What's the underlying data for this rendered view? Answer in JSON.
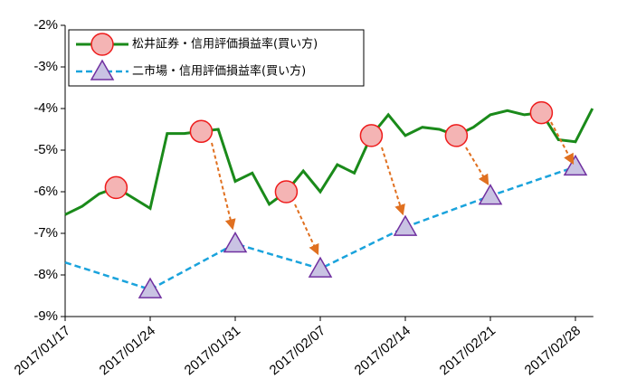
{
  "chart_data": {
    "type": "line",
    "categories": [
      "2017/01/17",
      null,
      null,
      null,
      null,
      "2017/01/24",
      null,
      null,
      null,
      null,
      "2017/01/31",
      null,
      null,
      null,
      null,
      "2017/02/07",
      null,
      null,
      null,
      null,
      "2017/02/14",
      null,
      null,
      null,
      null,
      "2017/02/21",
      null,
      null,
      null,
      null,
      "2017/02/28",
      null
    ],
    "ylim": [
      -9,
      -2
    ],
    "yticks": [
      {
        "value": -9,
        "label": "-9%"
      },
      {
        "value": -8,
        "label": "-8%"
      },
      {
        "value": -7,
        "label": "-7%"
      },
      {
        "value": -6,
        "label": "-6%"
      },
      {
        "value": -5,
        "label": "-5%"
      },
      {
        "value": -4,
        "label": "-4%"
      },
      {
        "value": -3,
        "label": "-3%"
      },
      {
        "value": -2,
        "label": "-2%"
      }
    ],
    "grid": false,
    "legend": "top-left",
    "connect_gaps": true,
    "series": [
      {
        "name": "松井証券・信用評価損益率(買い方)",
        "color": "#1a8a1a",
        "marker": "circle",
        "marker_fill": "#f4b4b4",
        "marker_color": "#ee1c1c",
        "values": [
          -6.55,
          -6.35,
          -6.05,
          -5.9,
          -6.15,
          -6.4,
          -4.6,
          -4.6,
          -4.55,
          -4.5,
          -5.75,
          -5.55,
          -6.3,
          -6.0,
          -5.5,
          -6.0,
          -5.35,
          -5.55,
          -4.65,
          -4.15,
          -4.65,
          -4.45,
          -4.5,
          -4.65,
          -4.45,
          -4.15,
          -4.05,
          -4.15,
          -4.1,
          -4.75,
          -4.8,
          -4.0
        ],
        "marker_values": [
          null,
          null,
          null,
          -5.9,
          null,
          null,
          null,
          null,
          -4.55,
          null,
          null,
          null,
          null,
          -6.0,
          null,
          null,
          null,
          null,
          -4.65,
          null,
          null,
          null,
          null,
          -4.65,
          null,
          null,
          null,
          null,
          -4.1,
          null,
          null,
          null
        ]
      },
      {
        "name": "二市場・信用評価損益率(買い方)",
        "color": "#1aa3dc",
        "dashed": true,
        "marker": "triangle",
        "marker_fill": "#c9c3e3",
        "marker_color": "#7030a0",
        "values": [
          -7.7,
          null,
          null,
          null,
          null,
          -8.35,
          null,
          null,
          null,
          null,
          -7.25,
          null,
          null,
          null,
          null,
          -7.85,
          null,
          null,
          null,
          null,
          -6.85,
          null,
          null,
          null,
          null,
          -6.1,
          null,
          null,
          null,
          null,
          -5.4,
          null
        ],
        "marker_values": [
          null,
          null,
          null,
          null,
          null,
          -8.35,
          null,
          null,
          null,
          null,
          -7.25,
          null,
          null,
          null,
          null,
          -7.85,
          null,
          null,
          null,
          null,
          -6.85,
          null,
          null,
          null,
          null,
          -6.1,
          null,
          null,
          null,
          null,
          -5.4,
          null
        ]
      }
    ]
  }
}
